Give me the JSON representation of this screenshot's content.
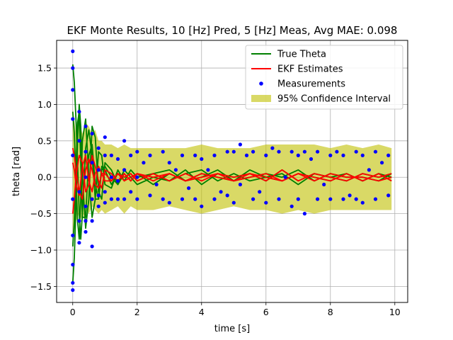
{
  "chart_data": {
    "type": "line",
    "title": "EKF Monte Results, 10 [Hz] Pred, 5 [Hz] Meas, Avg MAE: 0.098",
    "xlabel": "time [s]",
    "ylabel": "theta [rad]",
    "xlim": [
      -0.5,
      10.4
    ],
    "ylim": [
      -1.72,
      1.88
    ],
    "xticks": [
      0,
      2,
      4,
      6,
      8,
      10
    ],
    "yticks": [
      -1.5,
      -1.0,
      -0.5,
      0.0,
      0.5,
      1.0,
      1.5
    ],
    "xtick_labels": [
      "0",
      "2",
      "4",
      "6",
      "8",
      "10"
    ],
    "ytick_labels": [
      "−1.5",
      "−1.0",
      "−0.5",
      "0.0",
      "0.5",
      "1.0",
      "1.5"
    ],
    "grid": true,
    "legend_position": "top-right",
    "legend": [
      {
        "label": "True Theta",
        "kind": "line",
        "color": "#008000"
      },
      {
        "label": "EKF Estimates",
        "kind": "line",
        "color": "#ff0000"
      },
      {
        "label": "Measurements",
        "kind": "marker",
        "color": "#0000ff"
      },
      {
        "label": "95% Confidence Interval",
        "kind": "patch",
        "color": "#bfbf00"
      }
    ],
    "series": [
      {
        "name": "95% Confidence Interval",
        "kind": "band",
        "color": "#bfbf00",
        "x": [
          0.0,
          0.1,
          0.2,
          0.3,
          0.4,
          0.5,
          0.6,
          0.7,
          0.8,
          0.9,
          1.0,
          1.2,
          1.4,
          1.6,
          1.8,
          2.0,
          2.5,
          3.0,
          3.5,
          4.0,
          4.5,
          5.0,
          5.5,
          6.0,
          6.5,
          7.0,
          7.5,
          8.0,
          8.5,
          9.0,
          9.5,
          9.9
        ],
        "lower": [
          -0.85,
          -0.6,
          -0.5,
          -0.6,
          -0.45,
          -0.5,
          -0.4,
          -0.45,
          -0.5,
          -0.45,
          -0.5,
          -0.45,
          -0.4,
          -0.5,
          -0.4,
          -0.45,
          -0.45,
          -0.4,
          -0.45,
          -0.5,
          -0.45,
          -0.4,
          -0.45,
          -0.45,
          -0.5,
          -0.45,
          -0.5,
          -0.45,
          -0.45,
          -0.45,
          -0.45,
          -0.45
        ],
        "upper": [
          0.95,
          0.6,
          0.75,
          0.6,
          0.75,
          0.7,
          0.6,
          0.65,
          0.5,
          0.5,
          0.45,
          0.45,
          0.4,
          0.45,
          0.4,
          0.4,
          0.4,
          0.4,
          0.4,
          0.45,
          0.4,
          0.4,
          0.4,
          0.45,
          0.45,
          0.45,
          0.45,
          0.4,
          0.45,
          0.4,
          0.45,
          0.4
        ]
      },
      {
        "name": "True Theta",
        "kind": "lines",
        "color": "#008000",
        "x": [
          0.0,
          0.05,
          0.1,
          0.15,
          0.2,
          0.25,
          0.3,
          0.4,
          0.5,
          0.6,
          0.7,
          0.8,
          0.9,
          1.0,
          1.2,
          1.4,
          1.6,
          1.8,
          2.0,
          2.5,
          3.0,
          3.5,
          4.0,
          4.5,
          5.0,
          5.5,
          6.0,
          6.5,
          7.0,
          7.5,
          8.0,
          8.5,
          9.0,
          9.5,
          9.9
        ],
        "lines": [
          [
            1.55,
            1.3,
            0.8,
            0.2,
            -0.5,
            -0.85,
            -0.5,
            0.4,
            0.65,
            0.3,
            -0.3,
            -0.3,
            0.15,
            0.1,
            -0.1,
            0.05,
            0.0,
            0.05,
            -0.05,
            0.05,
            -0.05,
            0.1,
            -0.1,
            0.05,
            0.0,
            0.05,
            -0.05,
            0.1,
            -0.05,
            0.05,
            0.0,
            -0.05,
            0.05,
            0.0,
            0.05
          ],
          [
            -1.45,
            -1.1,
            -0.4,
            0.5,
            1.0,
            0.7,
            0.0,
            -0.7,
            -0.3,
            0.7,
            0.55,
            -0.2,
            -0.3,
            0.2,
            0.1,
            -0.1,
            0.05,
            -0.05,
            0.05,
            -0.1,
            0.05,
            -0.05,
            0.05,
            0.0,
            -0.05,
            0.1,
            0.0,
            -0.05,
            0.05,
            0.0,
            -0.05,
            0.05,
            -0.05,
            0.05,
            0.0
          ],
          [
            0.9,
            0.6,
            0.0,
            -0.6,
            -0.85,
            -0.3,
            0.5,
            0.8,
            0.0,
            -0.55,
            -0.3,
            0.35,
            0.3,
            -0.1,
            -0.15,
            0.1,
            -0.05,
            0.1,
            0.0,
            0.05,
            0.1,
            -0.05,
            0.0,
            0.1,
            -0.05,
            0.0,
            0.05,
            0.0,
            0.1,
            -0.05,
            0.05,
            0.0,
            0.0,
            -0.05,
            0.05
          ],
          [
            -0.95,
            -0.6,
            0.1,
            0.75,
            0.9,
            0.2,
            -0.55,
            -0.55,
            0.3,
            0.45,
            -0.1,
            -0.3,
            0.1,
            0.15,
            0.0,
            -0.1,
            0.1,
            0.0,
            -0.1,
            0.0,
            -0.05,
            0.05,
            0.1,
            -0.05,
            0.05,
            -0.05,
            0.0,
            0.05,
            -0.1,
            0.05,
            0.0,
            0.05,
            -0.05,
            0.05,
            -0.05
          ]
        ]
      },
      {
        "name": "EKF Estimates",
        "kind": "lines",
        "color": "#ff0000",
        "x": [
          0.0,
          0.05,
          0.1,
          0.2,
          0.3,
          0.4,
          0.5,
          0.6,
          0.7,
          0.8,
          0.9,
          1.0,
          1.2,
          1.4,
          1.6,
          1.8,
          2.0,
          2.5,
          3.0,
          3.5,
          4.0,
          4.5,
          5.0,
          5.5,
          6.0,
          6.5,
          7.0,
          7.5,
          8.0,
          8.5,
          9.0,
          9.5,
          9.9
        ],
        "lines": [
          [
            0.4,
            0.3,
            0.1,
            -0.2,
            -0.3,
            0.1,
            0.25,
            0.1,
            -0.1,
            -0.15,
            0.05,
            0.05,
            -0.05,
            0.05,
            0.0,
            0.05,
            -0.05,
            0.05,
            -0.05,
            0.05,
            -0.05,
            0.05,
            0.0,
            0.05,
            -0.05,
            0.1,
            -0.05,
            0.05,
            0.0,
            -0.05,
            0.05,
            0.0,
            0.05
          ],
          [
            -0.5,
            -0.3,
            0.0,
            0.3,
            0.2,
            -0.2,
            -0.1,
            0.3,
            0.15,
            -0.05,
            -0.15,
            0.1,
            0.05,
            -0.05,
            0.05,
            -0.05,
            0.05,
            -0.05,
            0.05,
            -0.05,
            0.05,
            0.0,
            -0.05,
            0.05,
            0.0,
            -0.05,
            0.05,
            0.0,
            -0.05,
            0.05,
            -0.05,
            0.05,
            -0.05
          ],
          [
            0.2,
            0.1,
            -0.1,
            -0.25,
            0.15,
            0.3,
            -0.05,
            -0.2,
            0.05,
            0.15,
            0.05,
            -0.05,
            -0.05,
            0.05,
            -0.05,
            0.0,
            0.05,
            0.0,
            0.05,
            -0.05,
            0.0,
            0.05,
            -0.05,
            0.0,
            0.05,
            -0.05,
            0.05,
            -0.05,
            0.05,
            0.0,
            0.0,
            -0.05,
            0.0
          ]
        ]
      },
      {
        "name": "Measurements",
        "kind": "scatter",
        "color": "#0000ff",
        "x": [
          0.0,
          0.0,
          0.0,
          0.0,
          0.0,
          0.0,
          0.0,
          0.0,
          0.0,
          0.0,
          0.2,
          0.2,
          0.2,
          0.2,
          0.2,
          0.4,
          0.4,
          0.4,
          0.4,
          0.4,
          0.4,
          0.6,
          0.6,
          0.6,
          0.6,
          0.6,
          0.8,
          0.8,
          0.8,
          0.8,
          1.0,
          1.0,
          1.0,
          1.0,
          1.2,
          1.2,
          1.2,
          1.4,
          1.4,
          1.4,
          1.6,
          1.6,
          1.6,
          1.8,
          1.8,
          2.0,
          2.0,
          2.0,
          2.2,
          2.4,
          2.4,
          2.6,
          2.8,
          2.8,
          3.0,
          3.0,
          3.2,
          3.4,
          3.4,
          3.6,
          3.8,
          3.8,
          4.0,
          4.0,
          4.2,
          4.4,
          4.4,
          4.6,
          4.8,
          4.8,
          5.0,
          5.0,
          5.2,
          5.2,
          5.4,
          5.6,
          5.6,
          5.8,
          6.0,
          6.0,
          6.2,
          6.4,
          6.4,
          6.6,
          6.8,
          6.8,
          7.0,
          7.0,
          7.2,
          7.2,
          7.4,
          7.6,
          7.6,
          7.8,
          8.0,
          8.0,
          8.2,
          8.4,
          8.4,
          8.6,
          8.8,
          8.8,
          9.0,
          9.0,
          9.2,
          9.4,
          9.4,
          9.6,
          9.8,
          9.8
        ],
        "y": [
          1.73,
          1.5,
          1.2,
          0.8,
          0.3,
          -0.3,
          -0.8,
          -1.2,
          -1.45,
          -1.55,
          0.9,
          0.5,
          -0.2,
          -0.6,
          -0.9,
          0.7,
          0.35,
          0.0,
          -0.4,
          -0.6,
          -0.75,
          0.6,
          0.2,
          -0.3,
          -0.6,
          -0.95,
          0.4,
          0.1,
          -0.25,
          -0.4,
          0.55,
          0.3,
          -0.2,
          -0.35,
          0.3,
          0.0,
          -0.3,
          0.25,
          -0.05,
          -0.3,
          0.5,
          0.1,
          -0.3,
          0.3,
          -0.2,
          0.35,
          0.0,
          -0.3,
          0.2,
          0.3,
          -0.25,
          -0.1,
          0.35,
          -0.3,
          0.2,
          -0.35,
          0.1,
          0.3,
          -0.3,
          -0.15,
          0.3,
          -0.3,
          0.25,
          -0.4,
          0.1,
          0.3,
          -0.3,
          -0.2,
          0.35,
          -0.25,
          0.35,
          -0.35,
          0.45,
          -0.1,
          0.3,
          0.35,
          -0.3,
          -0.2,
          0.3,
          -0.35,
          0.4,
          0.35,
          -0.3,
          0.0,
          0.35,
          -0.4,
          0.3,
          -0.3,
          0.35,
          -0.5,
          0.25,
          0.35,
          -0.3,
          -0.1,
          0.3,
          -0.3,
          0.35,
          0.3,
          -0.3,
          -0.25,
          0.35,
          -0.3,
          0.3,
          -0.35,
          0.1,
          0.35,
          -0.3,
          0.2,
          0.3,
          -0.25
        ]
      }
    ]
  }
}
